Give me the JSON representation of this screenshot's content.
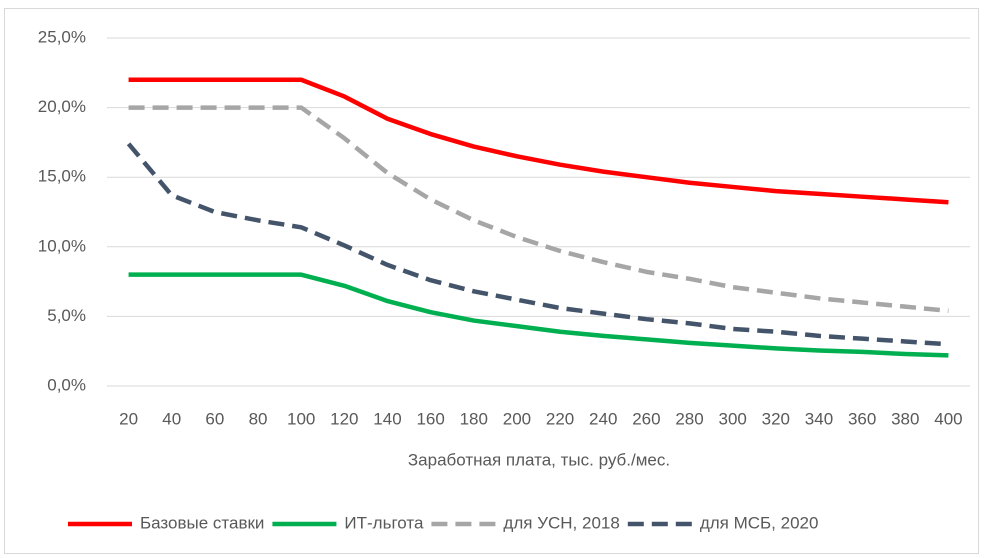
{
  "chart_data": {
    "type": "line",
    "categories": [
      20,
      40,
      60,
      80,
      100,
      120,
      140,
      160,
      180,
      200,
      220,
      240,
      260,
      280,
      300,
      320,
      340,
      360,
      380,
      400
    ],
    "x_label": "Заработная плата, тыс. руб./мес.",
    "ylim": [
      0,
      25
    ],
    "yticks": [
      {
        "value": 0,
        "label": "0,0%"
      },
      {
        "value": 5,
        "label": "5,0%"
      },
      {
        "value": 10,
        "label": "10,0%"
      },
      {
        "value": 15,
        "label": "15,0%"
      },
      {
        "value": 20,
        "label": "20,0%"
      },
      {
        "value": 25,
        "label": "25,0%"
      }
    ],
    "grid": true,
    "legend": "bottom",
    "series": [
      {
        "name": "Базовые ставки",
        "color": "#ff0000",
        "dash": false,
        "values": [
          22,
          22,
          22,
          22,
          22,
          20.8,
          19.2,
          18.1,
          17.2,
          16.5,
          15.9,
          15.4,
          15.0,
          14.6,
          14.3,
          14.0,
          13.8,
          13.6,
          13.4,
          13.2
        ]
      },
      {
        "name": "ИТ-льгота",
        "color": "#00b050",
        "dash": false,
        "values": [
          8,
          8,
          8,
          8,
          8,
          7.2,
          6.1,
          5.3,
          4.7,
          4.3,
          3.9,
          3.6,
          3.35,
          3.1,
          2.9,
          2.7,
          2.55,
          2.45,
          2.3,
          2.2
        ]
      },
      {
        "name": "для УСН, 2018",
        "color": "#a6a6a6",
        "dash": true,
        "values": [
          20,
          20,
          20,
          20,
          20,
          17.8,
          15.3,
          13.4,
          11.9,
          10.7,
          9.7,
          8.9,
          8.2,
          7.7,
          7.1,
          6.7,
          6.3,
          6.0,
          5.7,
          5.4
        ]
      },
      {
        "name": "для МСБ, 2020",
        "color": "#44546a",
        "dash": true,
        "values": [
          17.4,
          13.7,
          12.5,
          11.9,
          11.4,
          10.1,
          8.7,
          7.6,
          6.8,
          6.2,
          5.6,
          5.2,
          4.8,
          4.5,
          4.1,
          3.9,
          3.6,
          3.4,
          3.2,
          3.0
        ]
      }
    ]
  }
}
